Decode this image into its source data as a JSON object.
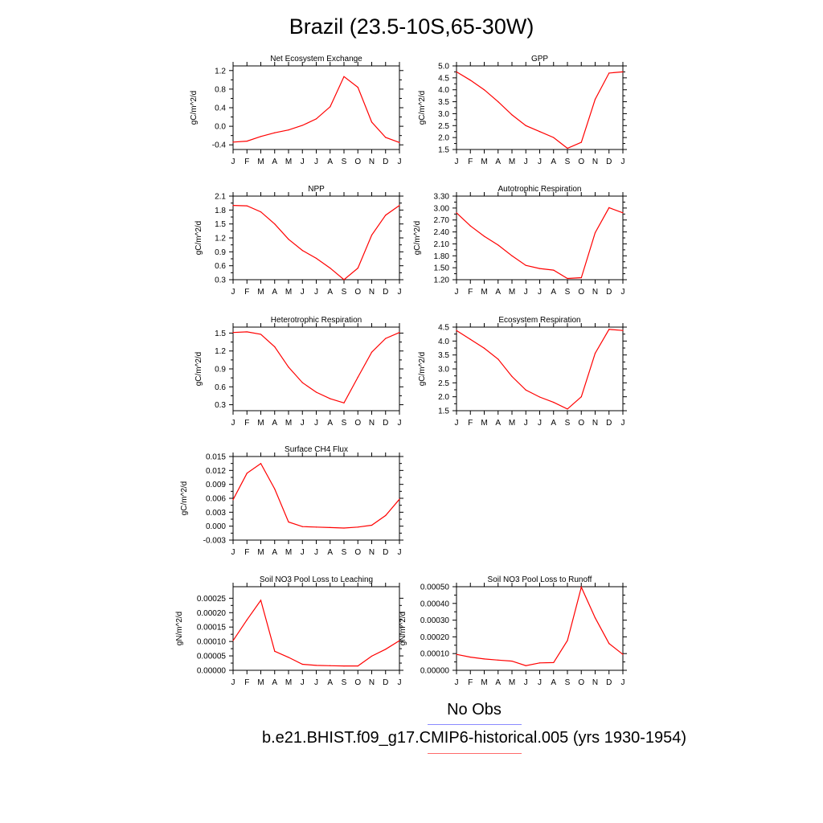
{
  "figure": {
    "title": "Brazil (23.5-10S,65-30W)",
    "series_color": "#ff0000",
    "obs_line_color": "#8b8bff",
    "legend": {
      "obs_label": "No Obs",
      "model_label": "b.e21.BHIST.f09_g17.CMIP6-historical.005 (yrs 1930-1954)"
    }
  },
  "chart_data": [
    {
      "type": "line",
      "title": "Net Ecosystem Exchange",
      "ylabel": "gC/m^2/d",
      "categories": [
        "J",
        "F",
        "M",
        "A",
        "M",
        "J",
        "J",
        "A",
        "S",
        "O",
        "N",
        "D",
        "J"
      ],
      "ylim": [
        -0.5,
        1.3
      ],
      "yticks": [
        -0.4,
        0.0,
        0.4,
        0.8,
        1.2
      ],
      "ytick_labels": [
        "-0.4",
        "0.0",
        "0.4",
        "0.8",
        "1.2"
      ],
      "values": [
        -0.34,
        -0.32,
        -0.22,
        -0.14,
        -0.08,
        0.02,
        0.16,
        0.42,
        1.07,
        0.84,
        0.09,
        -0.24,
        -0.35
      ]
    },
    {
      "type": "line",
      "title": "GPP",
      "ylabel": "gC/m^2/d",
      "categories": [
        "J",
        "F",
        "M",
        "A",
        "M",
        "J",
        "J",
        "A",
        "S",
        "O",
        "N",
        "D",
        "J"
      ],
      "ylim": [
        1.5,
        5.0
      ],
      "yticks": [
        1.5,
        2.0,
        2.5,
        3.0,
        3.5,
        4.0,
        4.5,
        5.0
      ],
      "ytick_labels": [
        "1.5",
        "2.0",
        "2.5",
        "3.0",
        "3.5",
        "4.0",
        "4.5",
        "5.0"
      ],
      "values": [
        4.75,
        4.4,
        4.0,
        3.5,
        2.95,
        2.5,
        2.25,
        2.0,
        1.55,
        1.8,
        3.6,
        4.7,
        4.75
      ]
    },
    {
      "type": "line",
      "title": "NPP",
      "ylabel": "gC/m^2/d",
      "categories": [
        "J",
        "F",
        "M",
        "A",
        "M",
        "J",
        "J",
        "A",
        "S",
        "O",
        "N",
        "D",
        "J"
      ],
      "ylim": [
        0.3,
        2.1
      ],
      "yticks": [
        0.3,
        0.6,
        0.9,
        1.2,
        1.5,
        1.8,
        2.1
      ],
      "ytick_labels": [
        "0.3",
        "0.6",
        "0.9",
        "1.2",
        "1.5",
        "1.8",
        "2.1"
      ],
      "values": [
        1.9,
        1.89,
        1.76,
        1.5,
        1.17,
        0.93,
        0.76,
        0.55,
        0.3,
        0.55,
        1.26,
        1.69,
        1.9
      ]
    },
    {
      "type": "line",
      "title": "Autotrophic Respiration",
      "ylabel": "gC/m^2/d",
      "categories": [
        "J",
        "F",
        "M",
        "A",
        "M",
        "J",
        "J",
        "A",
        "S",
        "O",
        "N",
        "D",
        "J"
      ],
      "ylim": [
        1.2,
        3.3
      ],
      "yticks": [
        1.2,
        1.5,
        1.8,
        2.1,
        2.4,
        2.7,
        3.0,
        3.3
      ],
      "ytick_labels": [
        "1.20",
        "1.50",
        "1.80",
        "2.10",
        "2.40",
        "2.70",
        "3.00",
        "3.30"
      ],
      "values": [
        2.88,
        2.55,
        2.29,
        2.07,
        1.8,
        1.56,
        1.48,
        1.44,
        1.23,
        1.25,
        2.38,
        3.01,
        2.88
      ]
    },
    {
      "type": "line",
      "title": "Heterotrophic Respiration",
      "ylabel": "gC/m^2/d",
      "categories": [
        "J",
        "F",
        "M",
        "A",
        "M",
        "J",
        "J",
        "A",
        "S",
        "O",
        "N",
        "D",
        "J"
      ],
      "ylim": [
        0.2,
        1.6
      ],
      "yticks": [
        0.3,
        0.6,
        0.9,
        1.2,
        1.5
      ],
      "ytick_labels": [
        "0.3",
        "0.6",
        "0.9",
        "1.2",
        "1.5"
      ],
      "values": [
        1.51,
        1.52,
        1.48,
        1.27,
        0.93,
        0.67,
        0.51,
        0.4,
        0.33,
        0.76,
        1.18,
        1.41,
        1.51
      ]
    },
    {
      "type": "line",
      "title": "Ecosystem Respiration",
      "ylabel": "gC/m^2/d",
      "categories": [
        "J",
        "F",
        "M",
        "A",
        "M",
        "J",
        "J",
        "A",
        "S",
        "O",
        "N",
        "D",
        "J"
      ],
      "ylim": [
        1.5,
        4.5
      ],
      "yticks": [
        1.5,
        2.0,
        2.5,
        3.0,
        3.5,
        4.0,
        4.5
      ],
      "ytick_labels": [
        "1.5",
        "2.0",
        "2.5",
        "3.0",
        "3.5",
        "4.0",
        "4.5"
      ],
      "values": [
        4.38,
        4.06,
        3.74,
        3.35,
        2.73,
        2.24,
        1.99,
        1.8,
        1.56,
        2.0,
        3.56,
        4.42,
        4.38
      ]
    },
    {
      "type": "line",
      "title": "Surface CH4 Flux",
      "ylabel": "gC/m^2/d",
      "categories": [
        "J",
        "F",
        "M",
        "A",
        "M",
        "J",
        "J",
        "A",
        "S",
        "O",
        "N",
        "D",
        "J"
      ],
      "ylim": [
        -0.003,
        0.015
      ],
      "yticks": [
        -0.003,
        0.0,
        0.003,
        0.006,
        0.009,
        0.012,
        0.015
      ],
      "ytick_labels": [
        "-0.003",
        "0.000",
        "0.003",
        "0.006",
        "0.009",
        "0.012",
        "0.015"
      ],
      "values": [
        0.0057,
        0.0114,
        0.0135,
        0.008,
        0.0009,
        -0.0001,
        -0.0002,
        -0.0003,
        -0.0004,
        -0.0002,
        0.0002,
        0.0023,
        0.0058
      ]
    },
    {
      "type": "line",
      "title": "Soil NO3 Pool Loss to Leaching",
      "ylabel": "gN/m^2/d",
      "categories": [
        "J",
        "F",
        "M",
        "A",
        "M",
        "J",
        "J",
        "A",
        "S",
        "O",
        "N",
        "D",
        "J"
      ],
      "ylim": [
        0.0,
        0.00029
      ],
      "yticks": [
        0.0,
        5e-05,
        0.0001,
        0.00015,
        0.0002,
        0.00025
      ],
      "ytick_labels": [
        "0.00000",
        "0.00005",
        "0.00010",
        "0.00015",
        "0.00020",
        "0.00025"
      ],
      "values": [
        0.000103,
        0.000175,
        0.000243,
        6.6e-05,
        4.5e-05,
        2.1e-05,
        1.7e-05,
        1.6e-05,
        1.5e-05,
        1.5e-05,
        4.9e-05,
        7.3e-05,
        0.000103
      ]
    },
    {
      "type": "line",
      "title": "Soil NO3 Pool Loss to Runoff",
      "ylabel": "gN/m^2/d",
      "categories": [
        "J",
        "F",
        "M",
        "A",
        "M",
        "J",
        "J",
        "A",
        "S",
        "O",
        "N",
        "D",
        "J"
      ],
      "ylim": [
        0.0,
        0.0005
      ],
      "yticks": [
        0.0,
        0.0001,
        0.0002,
        0.0003,
        0.0004,
        0.0005
      ],
      "ytick_labels": [
        "0.00000",
        "0.00010",
        "0.00020",
        "0.00030",
        "0.00040",
        "0.00050"
      ],
      "values": [
        9.5e-05,
        7.9e-05,
        6.8e-05,
        6.1e-05,
        5.5e-05,
        2.8e-05,
        4.4e-05,
        4.6e-05,
        0.000178,
        0.000497,
        0.000314,
        0.00016,
        9.5e-05
      ]
    }
  ]
}
